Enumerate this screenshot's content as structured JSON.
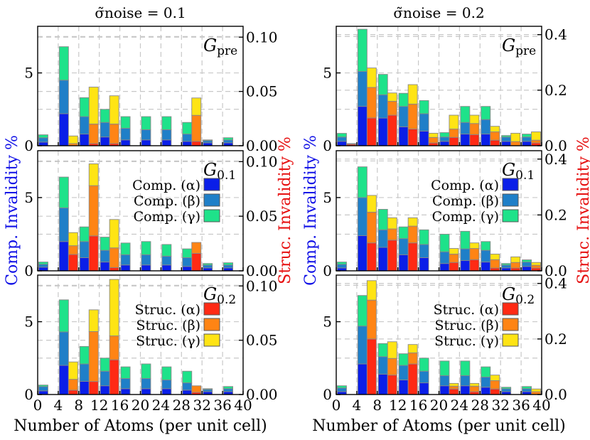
{
  "colors": {
    "comp_alpha": "#0a1ee8",
    "comp_beta": "#1f7fc8",
    "comp_gamma": "#1ee28a",
    "struc_alpha": "#ff2a14",
    "struc_beta": "#ff8414",
    "struc_gamma": "#ffe414"
  },
  "labels": {
    "xlabel": "Number of Atoms (per unit cell)",
    "ylabel_left": "Comp. Invalidity %",
    "ylabel_right": "Struc. Invalidity %",
    "col_titles": [
      "σ̃noise = 0.1",
      "σ̃noise = 0.2"
    ],
    "graph_main": "G",
    "graph_subs": [
      "pre",
      "0.1",
      "0.2"
    ]
  },
  "legend": {
    "comp": [
      "Comp. (α)",
      "Comp. (β)",
      "Comp. (γ)"
    ],
    "struc": [
      "Struc. (α)",
      "Struc. (β)",
      "Struc. (γ)"
    ]
  },
  "chart_data": {
    "type": "bar",
    "subtype": "stacked grouped bar, 2 columns x 3 rows, twin y-axes",
    "xlabel": "Number of Atoms (per unit cell)",
    "xlim": [
      0,
      40
    ],
    "xticks": [
      0,
      4,
      8,
      12,
      16,
      20,
      24,
      28,
      32,
      36,
      40
    ],
    "bins": [
      [
        0,
        4
      ],
      [
        4,
        8
      ],
      [
        8,
        12
      ],
      [
        12,
        16
      ],
      [
        16,
        20
      ],
      [
        20,
        24
      ],
      [
        24,
        28
      ],
      [
        28,
        32
      ],
      [
        32,
        36
      ],
      [
        36,
        40
      ]
    ],
    "left_axis": {
      "label": "Comp. Invalidity %",
      "ylim": [
        0,
        8.2
      ],
      "ticks": [
        0,
        5
      ]
    },
    "series_names": {
      "comp": [
        "Comp. (α)",
        "Comp. (β)",
        "Comp. (γ)"
      ],
      "struc": [
        "Struc. (α)",
        "Struc. (β)",
        "Struc. (γ)"
      ]
    },
    "panels": [
      {
        "column": "σ̃noise = 0.1",
        "graph": "pre",
        "right_ylim": [
          0,
          0.11
        ],
        "right_ticks": [
          "0.00",
          "0.05",
          "0.10"
        ],
        "comp": [
          [
            0.25,
            0.3,
            0.2
          ],
          [
            2.2,
            2.3,
            2.3
          ],
          [
            0.8,
            1.2,
            1.3
          ],
          [
            0.6,
            1.0,
            0.9
          ],
          [
            0.4,
            0.8,
            0.8
          ],
          [
            0.4,
            0.7,
            0.9
          ],
          [
            0.4,
            0.7,
            0.9
          ],
          [
            0.3,
            0.5,
            0.8
          ],
          [
            0.2,
            0.15,
            0.05
          ],
          [
            0.2,
            0.2,
            0.15
          ]
        ],
        "struc": [
          [
            0,
            0,
            0
          ],
          [
            0,
            0.002,
            0.007
          ],
          [
            0.002,
            0.018,
            0.034
          ],
          [
            0.002,
            0.018,
            0.026
          ],
          [
            0,
            0,
            0
          ],
          [
            0,
            0,
            0
          ],
          [
            0,
            0,
            0
          ],
          [
            0.004,
            0.024,
            0.016
          ],
          [
            0,
            0,
            0
          ],
          [
            0,
            0,
            0
          ]
        ]
      },
      {
        "column": "σ̃noise = 0.1",
        "graph": "0.1",
        "right_ylim": [
          0,
          0.11
        ],
        "right_ticks": [
          "0.00",
          "0.05",
          "0.10"
        ],
        "comp": [
          [
            0.25,
            0.2,
            0.15
          ],
          [
            2.0,
            2.3,
            2.1
          ],
          [
            0.9,
            1.1,
            1.0
          ],
          [
            0.6,
            0.8,
            0.9
          ],
          [
            0.4,
            0.7,
            0.8
          ],
          [
            0.4,
            0.7,
            0.9
          ],
          [
            0.4,
            0.6,
            0.8
          ],
          [
            0.3,
            0.6,
            0.6
          ],
          [
            0.2,
            0.2,
            0.1
          ],
          [
            0.2,
            0.2,
            0.15
          ]
        ],
        "struc": [
          [
            0,
            0,
            0
          ],
          [
            0.015,
            0.008,
            0.012
          ],
          [
            0.032,
            0.046,
            0.02
          ],
          [
            0.003,
            0.018,
            0.026
          ],
          [
            0,
            0,
            0
          ],
          [
            0,
            0,
            0
          ],
          [
            0,
            0,
            0
          ],
          [
            0.016,
            0.01,
            0.0
          ],
          [
            0,
            0,
            0
          ],
          [
            0,
            0,
            0
          ]
        ]
      },
      {
        "column": "σ̃noise = 0.1",
        "graph": "0.2",
        "right_ylim": [
          0,
          0.11
        ],
        "right_ticks": [
          "0.00",
          "0.05",
          "0.10"
        ],
        "comp": [
          [
            0.25,
            0.3,
            0.1
          ],
          [
            2.0,
            2.3,
            2.2
          ],
          [
            0.9,
            1.2,
            1.2
          ],
          [
            0.6,
            1.0,
            0.9
          ],
          [
            0.4,
            0.7,
            0.8
          ],
          [
            0.4,
            0.7,
            1.0
          ],
          [
            0.4,
            0.6,
            0.9
          ],
          [
            0.3,
            0.5,
            0.8
          ],
          [
            0.2,
            0.15,
            0.05
          ],
          [
            0.2,
            0.2,
            0.15
          ]
        ],
        "struc": [
          [
            0,
            0,
            0
          ],
          [
            0.004,
            0.01,
            0.016
          ],
          [
            0.012,
            0.046,
            0.02
          ],
          [
            0.032,
            0.022,
            0.052
          ],
          [
            0,
            0,
            0
          ],
          [
            0,
            0,
            0
          ],
          [
            0,
            0,
            0
          ],
          [
            0.002,
            0.006,
            0.0
          ],
          [
            0,
            0,
            0
          ],
          [
            0,
            0,
            0
          ]
        ]
      },
      {
        "column": "σ̃noise = 0.2",
        "graph": "pre",
        "right_ylim": [
          0,
          0.43
        ],
        "right_ticks": [
          "0.0",
          "0.2",
          "0.4"
        ],
        "comp": [
          [
            0.3,
            0.3,
            0.25
          ],
          [
            2.7,
            2.4,
            2.9
          ],
          [
            1.9,
            1.6,
            1.4
          ],
          [
            1.3,
            1.4,
            0.9
          ],
          [
            1.0,
            1.2,
            0.9
          ],
          [
            0.3,
            0.3,
            0.3
          ],
          [
            0.8,
            0.8,
            1.1
          ],
          [
            0.8,
            1.0,
            0.9
          ],
          [
            0.3,
            0.3,
            0.1
          ],
          [
            0.3,
            0.3,
            0.2
          ]
        ],
        "struc": [
          [
            0.005,
            0.001,
            0.002
          ],
          [
            0.1,
            0.11,
            0.07
          ],
          [
            0.11,
            0.05,
            0.03
          ],
          [
            0.06,
            0.09,
            0.07
          ],
          [
            0.01,
            0.02,
            0.015
          ],
          [
            0.03,
            0.03,
            0.05
          ],
          [
            0.04,
            0.04,
            0.03
          ],
          [
            0.02,
            0.03,
            0.02
          ],
          [
            0.0,
            0.015,
            0.03
          ],
          [
            0.01,
            0.01,
            0.03
          ]
        ]
      },
      {
        "column": "σ̃noise = 0.2",
        "graph": "0.1",
        "right_ylim": [
          0,
          0.43
        ],
        "right_ticks": [
          "0.0",
          "0.2",
          "0.4"
        ],
        "comp": [
          [
            0.2,
            0.25,
            0.15
          ],
          [
            2.4,
            2.6,
            2.1
          ],
          [
            1.6,
            1.2,
            1.4
          ],
          [
            1.1,
            1.1,
            0.8
          ],
          [
            0.9,
            0.9,
            1.0
          ],
          [
            0.5,
            0.8,
            1.2
          ],
          [
            0.7,
            0.8,
            1.2
          ],
          [
            0.6,
            0.8,
            0.6
          ],
          [
            0.2,
            0.2,
            0.1
          ],
          [
            0.3,
            0.3,
            0.15
          ]
        ],
        "struc": [
          [
            0,
            0,
            0
          ],
          [
            0.1,
            0.11,
            0.06
          ],
          [
            0.11,
            0.04,
            0.04
          ],
          [
            0.1,
            0.06,
            0.03
          ],
          [
            0,
            0,
            0
          ],
          [
            0.03,
            0.03,
            0.02
          ],
          [
            0.04,
            0.04,
            0.02
          ],
          [
            0.01,
            0.03,
            0.02
          ],
          [
            0.01,
            0.02,
            0.02
          ],
          [
            0.01,
            0.01,
            0.01
          ]
        ]
      },
      {
        "column": "σ̃noise = 0.2",
        "graph": "0.2",
        "right_ylim": [
          0,
          0.43
        ],
        "right_ticks": [
          "0.0",
          "0.2",
          "0.4"
        ],
        "comp": [
          [
            0.2,
            0.25,
            0.15
          ],
          [
            2.1,
            2.6,
            2.1
          ],
          [
            1.4,
            1.2,
            0.9
          ],
          [
            1.0,
            1.0,
            0.8
          ],
          [
            0.8,
            0.8,
            0.9
          ],
          [
            0.6,
            0.7,
            1.0
          ],
          [
            0.6,
            0.7,
            1.0
          ],
          [
            0.5,
            0.7,
            0.7
          ],
          [
            0.2,
            0.2,
            0.1
          ],
          [
            0.2,
            0.2,
            0.15
          ]
        ],
        "struc": [
          [
            0,
            0,
            0
          ],
          [
            0.2,
            0.14,
            0.07
          ],
          [
            0.07,
            0.06,
            0.06
          ],
          [
            0.11,
            0.04,
            0.03
          ],
          [
            0,
            0,
            0
          ],
          [
            0.02,
            0.01,
            0.01
          ],
          [
            0.01,
            0.02,
            0.01
          ],
          [
            0.02,
            0.03,
            0.02
          ],
          [
            0,
            0,
            0
          ],
          [
            0.0,
            0.01,
            0.01
          ]
        ]
      }
    ]
  }
}
